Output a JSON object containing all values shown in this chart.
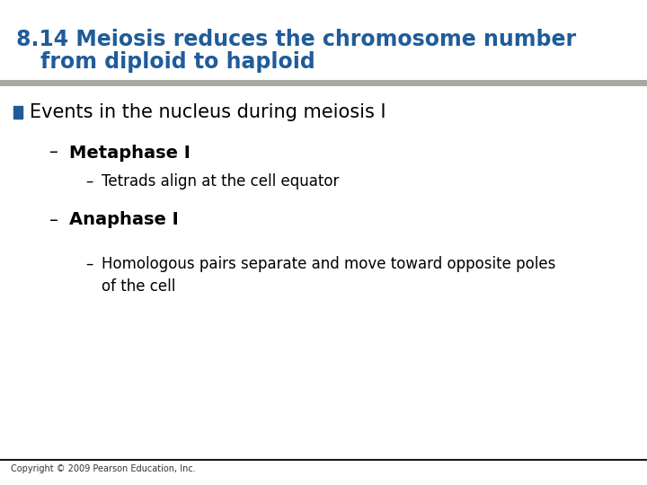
{
  "title_line1": "8.14 Meiosis reduces the chromosome number",
  "title_line2": "from diploid to haploid",
  "title_color": "#1F5C99",
  "title_fontsize": 17,
  "separator_color": "#A8A8A0",
  "separator_color2": "#1a1a1a",
  "background_color": "#FFFFFF",
  "bullet_color": "#1F5C99",
  "bullet_text": "Events in the nucleus during meiosis I",
  "bullet_fontsize": 15,
  "sub1_label": "Metaphase I",
  "sub1_fontsize": 14,
  "sub2_label": "Anaphase I",
  "sub2_fontsize": 14,
  "detail1": "Tetrads align at the cell equator",
  "detail1_fontsize": 12,
  "detail2_line1": "Homologous pairs separate and move toward opposite poles",
  "detail2_line2": "of the cell",
  "detail2_fontsize": 12,
  "copyright": "Copyright © 2009 Pearson Education, Inc.",
  "copyright_fontsize": 7,
  "copyright_color": "#333333"
}
